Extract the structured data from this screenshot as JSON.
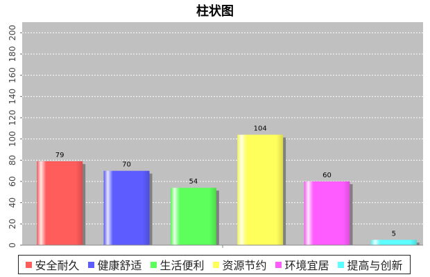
{
  "chart_data": {
    "type": "bar",
    "title": "柱状图",
    "xlabel": "",
    "ylabel": "",
    "categories": [
      "安全耐久",
      "健康舒适",
      "生活便利",
      "资源节约",
      "环境宜居",
      "提高与创新"
    ],
    "values": [
      79,
      70,
      54,
      104,
      60,
      5
    ],
    "colors": [
      "#ff5c5c",
      "#5c5cff",
      "#5cff5c",
      "#ffff5c",
      "#ff5cff",
      "#5cffff"
    ],
    "ylim": [
      0,
      210
    ],
    "yticks": [
      0,
      20,
      40,
      60,
      80,
      100,
      120,
      140,
      160,
      180,
      200
    ],
    "grid": true,
    "legend": "bottom",
    "plot_background": "#c0c0c0"
  }
}
